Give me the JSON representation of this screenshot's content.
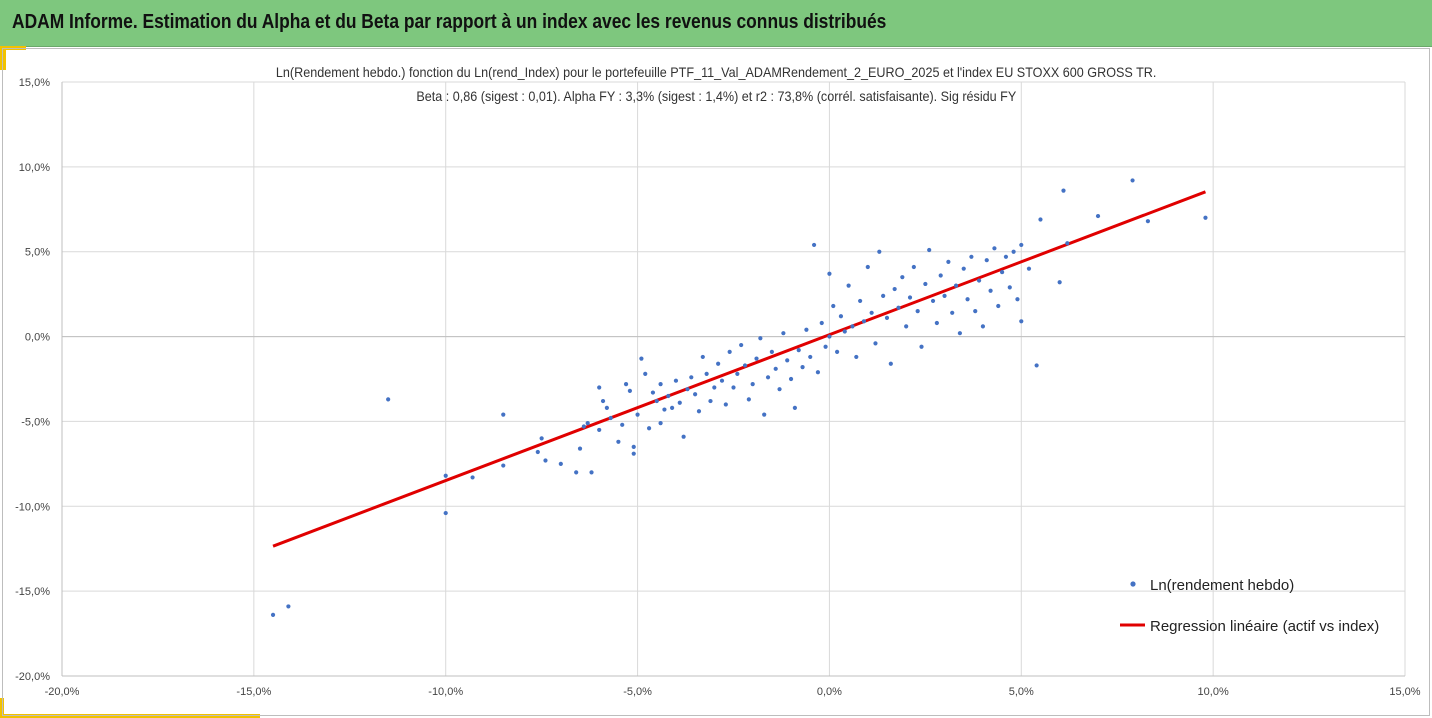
{
  "header": {
    "title": "ADAM Informe. Estimation du Alpha et du Beta par rapport à un index avec les revenus connus distribués"
  },
  "chart_data": {
    "type": "scatter",
    "title_line1": "Ln(Rendement hebdo.) fonction du Ln(rend_Index) pour le portefeuille PTF_11_Val_ADAMRendement_2_EURO_2025 et l'index EU STOXX 600 GROSS TR.",
    "title_line2": "Beta : 0,86 (sigest : 0,01).  Alpha FY : 3,3% (sigest : 1,4%) et r2 : 73,8% (corrél. satisfaisante). Sig résidu FY",
    "xlim": [
      -0.2,
      0.15
    ],
    "ylim": [
      -0.2,
      0.15
    ],
    "x_ticks": [
      "-20,0%",
      "-15,0%",
      "-10,0%",
      "-5,0%",
      "0,0%",
      "5,0%",
      "10,0%",
      "15,0%"
    ],
    "y_ticks": [
      "15,0%",
      "10,0%",
      "5,0%",
      "0,0%",
      "-5,0%",
      "-10,0%",
      "-15,0%",
      "-20,0%"
    ],
    "grid": true,
    "legend_position": "bottom-right",
    "colors": {
      "points": "#4472c4",
      "regression": "#e00000",
      "banner": "#7ec77e",
      "accent": "#f2c200"
    },
    "series": [
      {
        "name": "Ln(rendement hebdo)",
        "kind": "points",
        "points": [
          [
            -0.145,
            -0.164
          ],
          [
            -0.141,
            -0.159
          ],
          [
            -0.115,
            -0.037
          ],
          [
            -0.1,
            -0.104
          ],
          [
            -0.1,
            -0.082
          ],
          [
            -0.093,
            -0.083
          ],
          [
            -0.085,
            -0.046
          ],
          [
            -0.085,
            -0.076
          ],
          [
            -0.076,
            -0.068
          ],
          [
            -0.075,
            -0.06
          ],
          [
            -0.074,
            -0.073
          ],
          [
            -0.07,
            -0.075
          ],
          [
            -0.066,
            -0.08
          ],
          [
            -0.065,
            -0.066
          ],
          [
            -0.064,
            -0.053
          ],
          [
            -0.063,
            -0.051
          ],
          [
            -0.062,
            -0.08
          ],
          [
            -0.06,
            -0.055
          ],
          [
            -0.06,
            -0.03
          ],
          [
            -0.059,
            -0.038
          ],
          [
            -0.058,
            -0.042
          ],
          [
            -0.057,
            -0.048
          ],
          [
            -0.055,
            -0.062
          ],
          [
            -0.054,
            -0.052
          ],
          [
            -0.053,
            -0.028
          ],
          [
            -0.052,
            -0.032
          ],
          [
            -0.051,
            -0.065
          ],
          [
            -0.051,
            -0.069
          ],
          [
            -0.05,
            -0.046
          ],
          [
            -0.049,
            -0.013
          ],
          [
            -0.048,
            -0.022
          ],
          [
            -0.047,
            -0.054
          ],
          [
            -0.046,
            -0.033
          ],
          [
            -0.045,
            -0.038
          ],
          [
            -0.044,
            -0.051
          ],
          [
            -0.044,
            -0.028
          ],
          [
            -0.043,
            -0.043
          ],
          [
            -0.042,
            -0.035
          ],
          [
            -0.041,
            -0.042
          ],
          [
            -0.04,
            -0.026
          ],
          [
            -0.039,
            -0.039
          ],
          [
            -0.038,
            -0.059
          ],
          [
            -0.037,
            -0.031
          ],
          [
            -0.036,
            -0.024
          ],
          [
            -0.035,
            -0.034
          ],
          [
            -0.034,
            -0.044
          ],
          [
            -0.033,
            -0.012
          ],
          [
            -0.032,
            -0.022
          ],
          [
            -0.031,
            -0.038
          ],
          [
            -0.03,
            -0.03
          ],
          [
            -0.029,
            -0.016
          ],
          [
            -0.028,
            -0.026
          ],
          [
            -0.027,
            -0.04
          ],
          [
            -0.026,
            -0.009
          ],
          [
            -0.025,
            -0.03
          ],
          [
            -0.024,
            -0.022
          ],
          [
            -0.023,
            -0.005
          ],
          [
            -0.022,
            -0.017
          ],
          [
            -0.021,
            -0.037
          ],
          [
            -0.02,
            -0.028
          ],
          [
            -0.019,
            -0.013
          ],
          [
            -0.018,
            -0.001
          ],
          [
            -0.017,
            -0.046
          ],
          [
            -0.016,
            -0.024
          ],
          [
            -0.015,
            -0.009
          ],
          [
            -0.014,
            -0.019
          ],
          [
            -0.013,
            -0.031
          ],
          [
            -0.012,
            0.002
          ],
          [
            -0.011,
            -0.014
          ],
          [
            -0.01,
            -0.025
          ],
          [
            -0.009,
            -0.042
          ],
          [
            -0.008,
            -0.008
          ],
          [
            -0.007,
            -0.018
          ],
          [
            -0.006,
            0.004
          ],
          [
            -0.005,
            -0.012
          ],
          [
            -0.004,
            0.054
          ],
          [
            -0.003,
            -0.021
          ],
          [
            -0.002,
            0.008
          ],
          [
            -0.001,
            -0.006
          ],
          [
            0.0,
            0.037
          ],
          [
            0.0,
            0.0
          ],
          [
            0.001,
            0.018
          ],
          [
            0.002,
            -0.009
          ],
          [
            0.003,
            0.012
          ],
          [
            0.004,
            0.003
          ],
          [
            0.005,
            0.03
          ],
          [
            0.006,
            0.006
          ],
          [
            0.007,
            -0.012
          ],
          [
            0.008,
            0.021
          ],
          [
            0.009,
            0.009
          ],
          [
            0.01,
            0.041
          ],
          [
            0.011,
            0.014
          ],
          [
            0.012,
            -0.004
          ],
          [
            0.013,
            0.05
          ],
          [
            0.014,
            0.024
          ],
          [
            0.015,
            0.011
          ],
          [
            0.016,
            -0.016
          ],
          [
            0.017,
            0.028
          ],
          [
            0.018,
            0.017
          ],
          [
            0.019,
            0.035
          ],
          [
            0.02,
            0.006
          ],
          [
            0.021,
            0.023
          ],
          [
            0.022,
            0.041
          ],
          [
            0.023,
            0.015
          ],
          [
            0.024,
            -0.006
          ],
          [
            0.025,
            0.031
          ],
          [
            0.026,
            0.051
          ],
          [
            0.027,
            0.021
          ],
          [
            0.028,
            0.008
          ],
          [
            0.029,
            0.036
          ],
          [
            0.03,
            0.024
          ],
          [
            0.031,
            0.044
          ],
          [
            0.032,
            0.014
          ],
          [
            0.033,
            0.03
          ],
          [
            0.034,
            0.002
          ],
          [
            0.035,
            0.04
          ],
          [
            0.036,
            0.022
          ],
          [
            0.037,
            0.047
          ],
          [
            0.038,
            0.015
          ],
          [
            0.039,
            0.033
          ],
          [
            0.04,
            0.006
          ],
          [
            0.041,
            0.045
          ],
          [
            0.042,
            0.027
          ],
          [
            0.043,
            0.052
          ],
          [
            0.044,
            0.018
          ],
          [
            0.045,
            0.038
          ],
          [
            0.046,
            0.047
          ],
          [
            0.047,
            0.029
          ],
          [
            0.048,
            0.05
          ],
          [
            0.049,
            0.022
          ],
          [
            0.05,
            0.054
          ],
          [
            0.05,
            0.009
          ],
          [
            0.052,
            0.04
          ],
          [
            0.054,
            -0.017
          ],
          [
            0.055,
            0.069
          ],
          [
            0.06,
            0.032
          ],
          [
            0.061,
            0.086
          ],
          [
            0.062,
            0.055
          ],
          [
            0.07,
            0.071
          ],
          [
            0.079,
            0.092
          ],
          [
            0.083,
            0.068
          ],
          [
            0.098,
            0.07
          ]
        ]
      },
      {
        "name": "Regression linéaire (actif vs index)",
        "kind": "line",
        "x": [
          -0.145,
          0.098
        ],
        "y": [
          -0.1235,
          0.0853
        ]
      }
    ]
  }
}
